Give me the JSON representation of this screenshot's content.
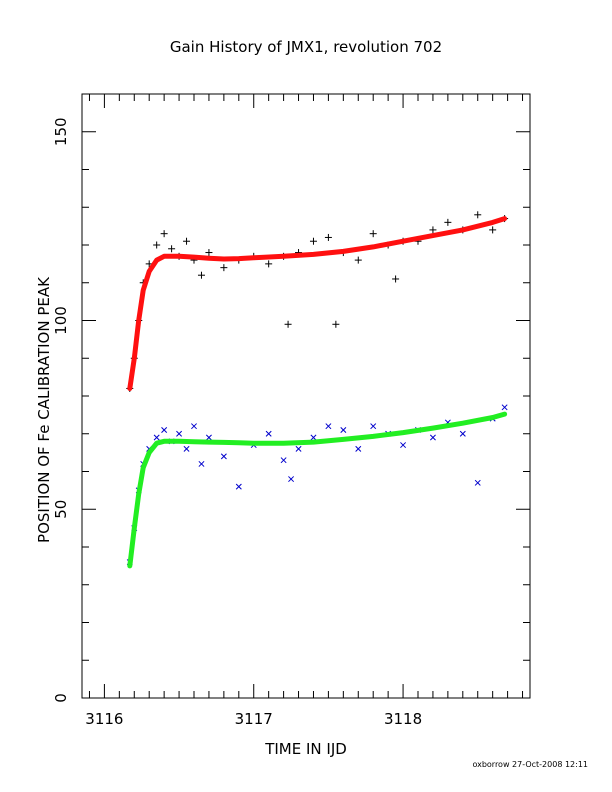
{
  "chart_data": {
    "type": "scatter",
    "title": "Gain History of JMX1, revolution 702",
    "xlabel": "TIME IN IJD",
    "ylabel": "POSITION OF Fe CALIBRATION PEAK",
    "xlim": [
      3115.85,
      3118.85
    ],
    "ylim": [
      0,
      160
    ],
    "xticks": [
      3116,
      3117,
      3118
    ],
    "yticks": [
      0,
      50,
      100,
      150
    ],
    "grid": false,
    "series": [
      {
        "marker": "plus",
        "color": "#000000",
        "x": [
          3116.17,
          3116.2,
          3116.23,
          3116.26,
          3116.3,
          3116.35,
          3116.4,
          3116.45,
          3116.5,
          3116.55,
          3116.6,
          3116.65,
          3116.7,
          3116.8,
          3116.9,
          3117.0,
          3117.1,
          3117.2,
          3117.23,
          3117.3,
          3117.4,
          3117.5,
          3117.55,
          3117.6,
          3117.7,
          3117.8,
          3117.9,
          3117.95,
          3118.0,
          3118.1,
          3118.2,
          3118.3,
          3118.4,
          3118.5,
          3118.6,
          3118.68
        ],
        "y": [
          82,
          90,
          100,
          110,
          115,
          120,
          123,
          119,
          117,
          121,
          116,
          112,
          118,
          114,
          116,
          117,
          115,
          117,
          99,
          118,
          121,
          122,
          99,
          118,
          116,
          123,
          120,
          111,
          121,
          121,
          124,
          126,
          124,
          128,
          124,
          127
        ]
      },
      {
        "marker": "cross",
        "color": "#0000cc",
        "x": [
          3116.17,
          3116.2,
          3116.23,
          3116.26,
          3116.3,
          3116.35,
          3116.4,
          3116.45,
          3116.5,
          3116.55,
          3116.6,
          3116.65,
          3116.7,
          3116.8,
          3116.9,
          3117.0,
          3117.1,
          3117.2,
          3117.25,
          3117.3,
          3117.4,
          3117.5,
          3117.6,
          3117.7,
          3117.8,
          3117.9,
          3118.0,
          3118.1,
          3118.2,
          3118.3,
          3118.4,
          3118.5,
          3118.6,
          3118.68
        ],
        "y": [
          36,
          45,
          55,
          62,
          66,
          69,
          71,
          68,
          70,
          66,
          72,
          62,
          69,
          64,
          56,
          67,
          70,
          63,
          58,
          66,
          69,
          72,
          71,
          66,
          72,
          70,
          67,
          71,
          69,
          73,
          70,
          57,
          74,
          77
        ]
      },
      {
        "marker": "line",
        "color": "#ff1010",
        "x": [
          3116.17,
          3116.2,
          3116.23,
          3116.26,
          3116.3,
          3116.35,
          3116.4,
          3116.5,
          3116.6,
          3116.7,
          3116.8,
          3116.9,
          3117.0,
          3117.2,
          3117.4,
          3117.6,
          3117.8,
          3118.0,
          3118.2,
          3118.4,
          3118.6,
          3118.68
        ],
        "y": [
          82,
          90,
          100,
          108,
          113,
          116,
          117,
          117,
          116.8,
          116.5,
          116.3,
          116.4,
          116.6,
          117,
          117.5,
          118.3,
          119.5,
          121,
          122.5,
          124,
          126,
          127
        ]
      },
      {
        "marker": "line",
        "color": "#22ee22",
        "x": [
          3116.17,
          3116.2,
          3116.23,
          3116.26,
          3116.3,
          3116.35,
          3116.4,
          3116.5,
          3116.6,
          3116.7,
          3116.8,
          3116.9,
          3117.0,
          3117.2,
          3117.4,
          3117.6,
          3117.8,
          3118.0,
          3118.2,
          3118.4,
          3118.6,
          3118.68
        ],
        "y": [
          35,
          45,
          54,
          61,
          65,
          67.5,
          68,
          68,
          67.9,
          67.8,
          67.7,
          67.6,
          67.5,
          67.5,
          67.8,
          68.5,
          69.3,
          70.3,
          71.5,
          72.8,
          74.3,
          75.2
        ]
      }
    ]
  },
  "footer": "oxborrow 27-Oct-2008 12:11"
}
